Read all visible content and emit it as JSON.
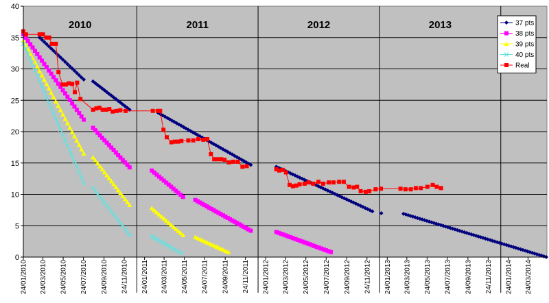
{
  "chart_data": {
    "type": "line",
    "ylim": [
      0,
      40
    ],
    "y_ticks": [
      "0",
      "5",
      "10",
      "15",
      "20",
      "25",
      "30",
      "35",
      "40"
    ],
    "x_range": [
      "2010-01-24",
      "2014-05-20"
    ],
    "x_tick_labels": [
      "24/01/2010",
      "24/03/2010",
      "24/05/2010",
      "24/07/2010",
      "24/09/2010",
      "24/11/2010",
      "24/01/2011",
      "24/03/2011",
      "24/05/2011",
      "24/07/2011",
      "24/09/2011",
      "24/11/2011",
      "24/01/2012",
      "24/03/2012",
      "24/05/2012",
      "24/07/2012",
      "24/09/2012",
      "24/11/2012",
      "24/01/2013",
      "24/03/2013",
      "24/05/2013",
      "24/07/2013",
      "24/09/2013",
      "24/11/2013",
      "24/01/2014",
      "24/03/2014"
    ],
    "season_labels": [
      "2010",
      "2011",
      "2012",
      "2013"
    ],
    "season_dividers": [
      "2011-01-01",
      "2012-01-01",
      "2013-01-01",
      "2014-01-01"
    ],
    "grid": true,
    "plot_background": "#c0c0c0",
    "legend_position": "top-right",
    "series": [
      {
        "name": "37 pts",
        "color": "#00007e",
        "marker": "diamond",
        "segments": [
          {
            "start": "2010-03-14",
            "end": "2010-07-25",
            "y_start": 35.0,
            "y_end": 28.3
          },
          {
            "start": "2010-08-22",
            "end": "2010-12-10",
            "y_start": 28.0,
            "y_end": 23.5
          },
          {
            "start": "2011-03-06",
            "end": "2011-12-10",
            "y_start": 23.0,
            "y_end": 14.7
          },
          {
            "start": "2012-02-25",
            "end": "2012-12-10",
            "y_start": 14.4,
            "y_end": 7.3
          },
          {
            "start": "2013-01-06",
            "end": "2013-01-06",
            "y_start": 7.0,
            "y_end": 7.0
          },
          {
            "start": "2013-03-14",
            "end": "2014-05-18",
            "y_start": 6.9,
            "y_end": 0.0
          }
        ]
      },
      {
        "name": "38 pts",
        "color": "#ff00ff",
        "marker": "square",
        "segments": [
          {
            "start": "2010-01-24",
            "end": "2010-07-25",
            "y_start": 35.5,
            "y_end": 21.9
          },
          {
            "start": "2010-08-22",
            "end": "2010-12-10",
            "y_start": 20.6,
            "y_end": 14.3
          },
          {
            "start": "2011-02-15",
            "end": "2011-05-20",
            "y_start": 13.8,
            "y_end": 9.6
          },
          {
            "start": "2011-06-26",
            "end": "2011-12-10",
            "y_start": 9.1,
            "y_end": 4.2
          },
          {
            "start": "2012-02-25",
            "end": "2012-08-07",
            "y_start": 4.0,
            "y_end": 0.8
          }
        ]
      },
      {
        "name": "39 pts",
        "color": "#ffff00",
        "marker": "triangle",
        "segments": [
          {
            "start": "2010-01-24",
            "end": "2010-07-25",
            "y_start": 34.5,
            "y_end": 16.5
          },
          {
            "start": "2010-08-22",
            "end": "2010-12-10",
            "y_start": 15.9,
            "y_end": 8.3
          },
          {
            "start": "2011-02-15",
            "end": "2011-05-20",
            "y_start": 7.8,
            "y_end": 3.5
          },
          {
            "start": "2011-06-26",
            "end": "2011-10-03",
            "y_start": 3.2,
            "y_end": 0.8
          }
        ]
      },
      {
        "name": "40 pts",
        "color": "#66e0e0",
        "marker": "cross",
        "segments": [
          {
            "start": "2010-01-24",
            "end": "2010-07-25",
            "y_start": 34.0,
            "y_end": 11.8
          },
          {
            "start": "2010-08-22",
            "end": "2010-12-10",
            "y_start": 11.0,
            "y_end": 3.5
          },
          {
            "start": "2011-02-15",
            "end": "2011-05-15",
            "y_start": 3.3,
            "y_end": 0.6
          }
        ]
      },
      {
        "name": "Real",
        "color": "#ff0000",
        "marker": "square",
        "points": [
          [
            "2010-01-24",
            36.0
          ],
          [
            "2010-02-01",
            35.5
          ],
          [
            "2010-03-14",
            35.5
          ],
          [
            "2010-03-24",
            35.5
          ],
          [
            "2010-04-03",
            35.0
          ],
          [
            "2010-04-12",
            35.0
          ],
          [
            "2010-04-20",
            34.0
          ],
          [
            "2010-05-02",
            34.0
          ],
          [
            "2010-05-10",
            29.5
          ],
          [
            "2010-05-22",
            27.5
          ],
          [
            "2010-06-01",
            27.5
          ],
          [
            "2010-06-10",
            27.7
          ],
          [
            "2010-06-20",
            27.6
          ],
          [
            "2010-06-28",
            26.3
          ],
          [
            "2010-07-05",
            27.8
          ],
          [
            "2010-07-15",
            25.2
          ],
          [
            "2010-08-22",
            23.5
          ],
          [
            "2010-09-01",
            23.7
          ],
          [
            "2010-09-10",
            23.8
          ],
          [
            "2010-09-20",
            23.5
          ],
          [
            "2010-10-01",
            23.5
          ],
          [
            "2010-10-10",
            23.6
          ],
          [
            "2010-10-20",
            23.2
          ],
          [
            "2010-11-01",
            23.3
          ],
          [
            "2010-11-12",
            23.4
          ],
          [
            "2010-11-28",
            23.3
          ],
          [
            "2011-02-18",
            23.3
          ],
          [
            "2011-03-05",
            23.3
          ],
          [
            "2011-03-12",
            23.3
          ],
          [
            "2011-03-22",
            20.3
          ],
          [
            "2011-04-01",
            19.1
          ],
          [
            "2011-04-15",
            18.3
          ],
          [
            "2011-04-25",
            18.4
          ],
          [
            "2011-05-05",
            18.4
          ],
          [
            "2011-05-15",
            18.5
          ],
          [
            "2011-06-05",
            18.6
          ],
          [
            "2011-06-20",
            18.6
          ],
          [
            "2011-07-05",
            18.8
          ],
          [
            "2011-07-20",
            18.7
          ],
          [
            "2011-08-01",
            18.8
          ],
          [
            "2011-08-12",
            16.4
          ],
          [
            "2011-08-22",
            15.6
          ],
          [
            "2011-09-01",
            15.6
          ],
          [
            "2011-09-12",
            15.6
          ],
          [
            "2011-09-22",
            15.5
          ],
          [
            "2011-10-05",
            15.1
          ],
          [
            "2011-10-18",
            15.2
          ],
          [
            "2011-11-01",
            15.2
          ],
          [
            "2011-11-15",
            14.4
          ],
          [
            "2011-11-28",
            14.5
          ],
          [
            "2012-02-25",
            14.0
          ],
          [
            "2012-03-05",
            13.8
          ],
          [
            "2012-03-15",
            13.9
          ],
          [
            "2012-03-25",
            13.5
          ],
          [
            "2012-04-05",
            11.5
          ],
          [
            "2012-04-15",
            11.3
          ],
          [
            "2012-04-25",
            11.4
          ],
          [
            "2012-05-05",
            11.6
          ],
          [
            "2012-05-20",
            11.7
          ],
          [
            "2012-06-01",
            11.9
          ],
          [
            "2012-06-15",
            11.7
          ],
          [
            "2012-07-01",
            12.0
          ],
          [
            "2012-07-15",
            11.7
          ],
          [
            "2012-08-01",
            11.9
          ],
          [
            "2012-08-15",
            11.9
          ],
          [
            "2012-09-01",
            12.0
          ],
          [
            "2012-09-15",
            12.0
          ],
          [
            "2012-10-01",
            11.2
          ],
          [
            "2012-10-15",
            11.1
          ],
          [
            "2012-10-25",
            11.2
          ],
          [
            "2012-11-05",
            10.5
          ],
          [
            "2012-11-20",
            10.4
          ],
          [
            "2012-12-01",
            10.5
          ],
          [
            "2012-12-20",
            10.8
          ],
          [
            "2013-01-05",
            10.9
          ],
          [
            "2013-03-05",
            10.9
          ],
          [
            "2013-03-20",
            10.8
          ],
          [
            "2013-04-05",
            10.8
          ],
          [
            "2013-04-20",
            11.0
          ],
          [
            "2013-05-05",
            11.0
          ],
          [
            "2013-05-25",
            11.2
          ],
          [
            "2013-06-10",
            11.5
          ],
          [
            "2013-06-22",
            11.2
          ],
          [
            "2013-07-05",
            11.0
          ]
        ]
      }
    ]
  }
}
